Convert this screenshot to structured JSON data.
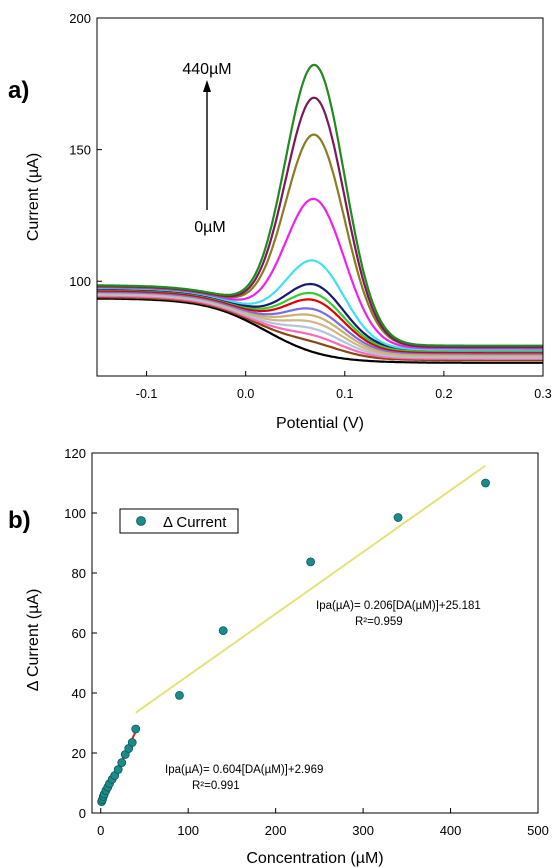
{
  "chart_data": [
    {
      "panel_label": "a)",
      "type": "line",
      "xlabel": "Potential (V)",
      "ylabel": "Current (µA)",
      "xlim": [
        -0.15,
        0.3
      ],
      "ylim": [
        64,
        200
      ],
      "x_ticks": [
        -0.1,
        0.0,
        0.1,
        0.2,
        0.3
      ],
      "x_tick_labels": [
        "-0.1",
        "0.0",
        "0.1",
        "0.2",
        "0.3"
      ],
      "y_ticks": [
        100,
        150,
        200
      ],
      "y_tick_labels": [
        "100",
        "150",
        "200"
      ],
      "grid": false,
      "annotations": {
        "top_label": "440µM",
        "bottom_label": "0µM"
      },
      "peak_potential": 0.07,
      "series": [
        {
          "color": "#000000",
          "baseline_start": 93.5,
          "baseline_end": 69,
          "peak": 0
        },
        {
          "color": "#8b4513",
          "baseline_start": 94,
          "baseline_end": 70,
          "peak": 3
        },
        {
          "color": "#ff69b4",
          "baseline_start": 94.5,
          "baseline_end": 70.5,
          "peak": 5
        },
        {
          "color": "#b0c4de",
          "baseline_start": 95,
          "baseline_end": 71,
          "peak": 7
        },
        {
          "color": "#d2b48c",
          "baseline_start": 95.5,
          "baseline_end": 71.5,
          "peak": 9
        },
        {
          "color": "#c6b36b",
          "baseline_start": 95.8,
          "baseline_end": 72,
          "peak": 11
        },
        {
          "color": "#7b68ee",
          "baseline_start": 96,
          "baseline_end": 72.5,
          "peak": 13
        },
        {
          "color": "#e00000",
          "baseline_start": 96.5,
          "baseline_end": 73,
          "peak": 16
        },
        {
          "color": "#32cd32",
          "baseline_start": 97,
          "baseline_end": 73.5,
          "peak": 18
        },
        {
          "color": "#191970",
          "baseline_start": 97.2,
          "baseline_end": 74,
          "peak": 21
        },
        {
          "color": "#40e0f0",
          "baseline_start": 97.5,
          "baseline_end": 74,
          "peak": 30
        },
        {
          "color": "#ee22ee",
          "baseline_start": 97.8,
          "baseline_end": 74.5,
          "peak": 53
        },
        {
          "color": "#8b7d1f",
          "baseline_start": 98,
          "baseline_end": 75,
          "peak": 77
        },
        {
          "color": "#7a1a5a",
          "baseline_start": 98.2,
          "baseline_end": 75,
          "peak": 91
        },
        {
          "color": "#1f8a1f",
          "baseline_start": 98.5,
          "baseline_end": 75.5,
          "peak": 103
        }
      ]
    },
    {
      "panel_label": "b)",
      "type": "scatter",
      "xlabel": "Concentration (µM)",
      "ylabel": "Δ Current (µA)",
      "xlim": [
        -10,
        500
      ],
      "ylim": [
        0,
        120
      ],
      "x_ticks": [
        0,
        100,
        200,
        300,
        400,
        500
      ],
      "x_tick_labels": [
        "0",
        "100",
        "200",
        "300",
        "400",
        "500"
      ],
      "y_ticks": [
        0,
        20,
        40,
        60,
        80,
        100,
        120
      ],
      "y_tick_labels": [
        "0",
        "20",
        "40",
        "60",
        "80",
        "100",
        "120"
      ],
      "grid": false,
      "legend": {
        "placement": "top-left",
        "entries": [
          "Δ Current"
        ]
      },
      "marker_color": "#1a8a8a",
      "series": [
        {
          "name": "Δ Current",
          "x": [
            1,
            2,
            3,
            4,
            6,
            8,
            10,
            13,
            16,
            20,
            24,
            28,
            32,
            36,
            40,
            90,
            140,
            240,
            340,
            440
          ],
          "y": [
            3.8,
            4.5,
            5.5,
            6.3,
            7.5,
            8.6,
            9.8,
            11.2,
            12.5,
            14.5,
            16.8,
            19.5,
            21.5,
            23.5,
            28,
            39.2,
            60.8,
            83.7,
            98.5,
            110
          ]
        }
      ],
      "fits": [
        {
          "color": "#e02020",
          "x_range": [
            0,
            40
          ],
          "slope": 0.604,
          "intercept": 2.969,
          "equation": "Ipa(µA)= 0.604[DA(µM)]+2.969",
          "r2_label": "R²=0.991"
        },
        {
          "color": "#e6e27a",
          "x_range": [
            40,
            440
          ],
          "slope": 0.206,
          "intercept": 25.181,
          "equation": "Ipa(µA)= 0.206[DA(µM)]+25.181",
          "r2_label": "R²=0.959"
        }
      ]
    }
  ]
}
